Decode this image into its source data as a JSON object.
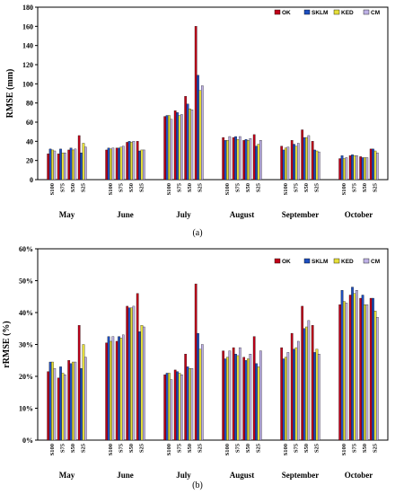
{
  "chart_data": [
    {
      "type": "bar",
      "caption": "(a)",
      "ylabel": "RMSE (mm)",
      "ylim": [
        0,
        180
      ],
      "yticks": [
        0,
        20,
        40,
        60,
        80,
        100,
        120,
        140,
        160,
        180
      ],
      "ytick_labels": [
        "0",
        "20",
        "40",
        "60",
        "80",
        "100",
        "120",
        "140",
        "160",
        "180"
      ],
      "months": [
        "May",
        "June",
        "July",
        "August",
        "September",
        "October"
      ],
      "sublabels": [
        "S100",
        "S75",
        "S50",
        "S25"
      ],
      "legend_position": "top-right",
      "series": [
        {
          "name": "OK",
          "color": "#c0001a",
          "values": [
            27,
            27,
            31,
            46,
            31,
            33,
            39,
            40,
            66,
            72,
            87,
            160,
            44,
            44,
            41,
            47,
            35,
            41,
            52,
            40,
            22,
            25,
            24,
            32
          ]
        },
        {
          "name": "SKLM",
          "color": "#1f4fbf",
          "values": [
            32,
            32,
            33,
            28,
            33,
            33,
            40,
            30,
            67,
            70,
            79,
            109,
            41,
            45,
            42,
            35,
            31,
            37,
            44,
            31,
            25,
            26,
            23,
            32
          ]
        },
        {
          "name": "KED",
          "color": "#e6df3a",
          "values": [
            31,
            28,
            31,
            38,
            32,
            34,
            39,
            31,
            67,
            67,
            74,
            93,
            41,
            42,
            41,
            37,
            33,
            35,
            44,
            30,
            22,
            25,
            23,
            30
          ]
        },
        {
          "name": "CM",
          "color": "#bfb2e6",
          "values": [
            30,
            28,
            32,
            34,
            33,
            35,
            40,
            31,
            63,
            68,
            73,
            98,
            45,
            45,
            43,
            41,
            34,
            38,
            46,
            29,
            23,
            25,
            23,
            28
          ]
        }
      ]
    },
    {
      "type": "bar",
      "caption": "(b)",
      "ylabel": "rRMSE (%)",
      "ylim": [
        0,
        60
      ],
      "yticks": [
        0,
        10,
        20,
        30,
        40,
        50,
        60
      ],
      "ytick_labels": [
        "0%",
        "10%",
        "20%",
        "30%",
        "40%",
        "50%",
        "60%"
      ],
      "months": [
        "May",
        "June",
        "July",
        "August",
        "September",
        "October"
      ],
      "sublabels": [
        "S100",
        "S75",
        "S50",
        "S25"
      ],
      "legend_position": "top-right",
      "series": [
        {
          "name": "OK",
          "color": "#c0001a",
          "values": [
            21.5,
            19.5,
            25,
            36,
            30.5,
            31,
            42,
            46,
            20.5,
            22,
            27,
            49,
            28,
            29,
            26,
            32.5,
            29,
            33.5,
            42,
            36,
            42.5,
            45.5,
            44.5,
            44.5
          ]
        },
        {
          "name": "SKLM",
          "color": "#1f4fbf",
          "values": [
            24.5,
            23,
            24,
            22.5,
            32.5,
            32.5,
            41.5,
            34,
            21,
            21.5,
            23,
            33.5,
            25.5,
            27,
            25,
            24,
            25.5,
            28.5,
            35,
            27.5,
            47,
            48,
            45.5,
            44.5
          ]
        },
        {
          "name": "KED",
          "color": "#e6df3a",
          "values": [
            24.5,
            21,
            24.5,
            30,
            31,
            32,
            41.5,
            36,
            21,
            21,
            22.5,
            28.5,
            26,
            26.5,
            25.5,
            23,
            26,
            29,
            35.5,
            28.5,
            43.5,
            46,
            42.5,
            40.5
          ]
        },
        {
          "name": "CM",
          "color": "#bfb2e6",
          "values": [
            22.5,
            20.5,
            24.5,
            26,
            32.5,
            33,
            42,
            35.5,
            19,
            20.5,
            22.5,
            30,
            28,
            29,
            27,
            28,
            27.5,
            31,
            37.5,
            27,
            43,
            47,
            42.5,
            38.5
          ]
        }
      ]
    }
  ]
}
